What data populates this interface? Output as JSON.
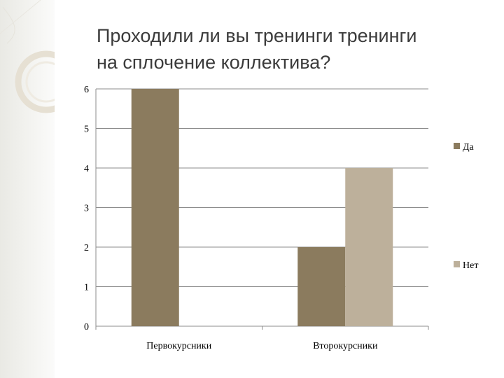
{
  "slide": {
    "title_lines": [
      "Проходили ли вы тренинги тренинги",
      "на сплочение коллектива?"
    ]
  },
  "colors": {
    "series_da": "#8b7b5e",
    "series_net": "#bdb09b",
    "gridline": "#8c8c8c",
    "decor": "#e4dfd2"
  },
  "chart_data": {
    "type": "bar",
    "title": "Проходили ли вы тренинги тренинги на сплочение коллектива?",
    "categories": [
      "Первокурсники",
      "Второкурсники"
    ],
    "series": [
      {
        "name": "Да",
        "values": [
          6,
          2
        ]
      },
      {
        "name": "Нет",
        "values": [
          0,
          4
        ]
      }
    ],
    "xlabel": "",
    "ylabel": "",
    "ylim": [
      0,
      6
    ],
    "yticks": [
      "0",
      "1",
      "2",
      "3",
      "4",
      "5",
      "6"
    ],
    "grid": true,
    "legend": "right"
  }
}
